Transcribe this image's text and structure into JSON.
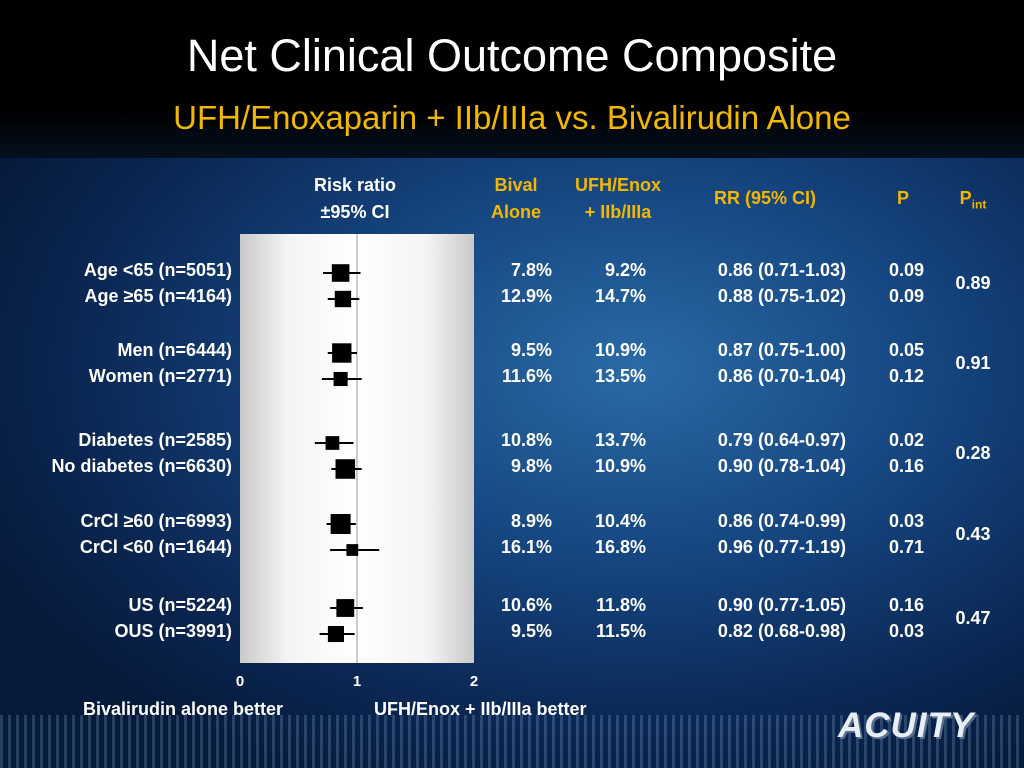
{
  "title": "Net Clinical Outcome Composite",
  "subtitle": "UFH/Enoxaparin + IIb/IIIa vs. Bivalirudin Alone",
  "headers": {
    "risk_ratio_1": "Risk ratio",
    "risk_ratio_2": "±95% CI",
    "bival_1": "Bival",
    "bival_2": "Alone",
    "ufh_1": "UFH/Enox",
    "ufh_2": "+ IIb/IIIa",
    "rr": "RR (95% CI)",
    "p": "P",
    "pint_main": "P",
    "pint_sub": "int"
  },
  "footer": {
    "left": "Bivalirudin alone better",
    "right": "UFH/Enox + IIb/IIIa better"
  },
  "logo": "ACUITY",
  "chart_data": {
    "type": "forest",
    "x_ticks": [
      "0",
      "1",
      "2"
    ],
    "xlim": [
      0,
      2
    ],
    "reference_line": 1,
    "rows": [
      {
        "label": "Age <65 (n=5051)",
        "bival": "7.8%",
        "ufh": "9.2%",
        "rr_text": "0.86 (0.71-1.03)",
        "p": "0.09",
        "rr": 0.86,
        "lo": 0.71,
        "hi": 1.03,
        "n": 5051
      },
      {
        "label": "Age ≥65 (n=4164)",
        "bival": "12.9%",
        "ufh": "14.7%",
        "rr_text": "0.88 (0.75-1.02)",
        "p": "0.09",
        "rr": 0.88,
        "lo": 0.75,
        "hi": 1.02,
        "n": 4164
      },
      {
        "label": "Men (n=6444)",
        "bival": "9.5%",
        "ufh": "10.9%",
        "rr_text": "0.87 (0.75-1.00)",
        "p": "0.05",
        "rr": 0.87,
        "lo": 0.75,
        "hi": 1.0,
        "n": 6444
      },
      {
        "label": "Women (n=2771)",
        "bival": "11.6%",
        "ufh": "13.5%",
        "rr_text": "0.86 (0.70-1.04)",
        "p": "0.12",
        "rr": 0.86,
        "lo": 0.7,
        "hi": 1.04,
        "n": 2771
      },
      {
        "label": "Diabetes (n=2585)",
        "bival": "10.8%",
        "ufh": "13.7%",
        "rr_text": "0.79 (0.64-0.97)",
        "p": "0.02",
        "rr": 0.79,
        "lo": 0.64,
        "hi": 0.97,
        "n": 2585
      },
      {
        "label": "No diabetes (n=6630)",
        "bival": "9.8%",
        "ufh": "10.9%",
        "rr_text": "0.90 (0.78-1.04)",
        "p": "0.16",
        "rr": 0.9,
        "lo": 0.78,
        "hi": 1.04,
        "n": 6630
      },
      {
        "label": "CrCl ≥60 (n=6993)",
        "bival": "8.9%",
        "ufh": "10.4%",
        "rr_text": "0.86 (0.74-0.99)",
        "p": "0.03",
        "rr": 0.86,
        "lo": 0.74,
        "hi": 0.99,
        "n": 6993
      },
      {
        "label": "CrCl <60 (n=1644)",
        "bival": "16.1%",
        "ufh": "16.8%",
        "rr_text": "0.96 (0.77-1.19)",
        "p": "0.71",
        "rr": 0.96,
        "lo": 0.77,
        "hi": 1.19,
        "n": 1644
      },
      {
        "label": "US (n=5224)",
        "bival": "10.6%",
        "ufh": "11.8%",
        "rr_text": "0.90 (0.77-1.05)",
        "p": "0.16",
        "rr": 0.9,
        "lo": 0.77,
        "hi": 1.05,
        "n": 5224
      },
      {
        "label": "OUS (n=3991)",
        "bival": "9.5%",
        "ufh": "11.5%",
        "rr_text": "0.82 (0.68-0.98)",
        "p": "0.03",
        "rr": 0.82,
        "lo": 0.68,
        "hi": 0.98,
        "n": 3991
      }
    ],
    "p_int": [
      "0.89",
      "0.91",
      "0.28",
      "0.43",
      "0.47"
    ]
  }
}
